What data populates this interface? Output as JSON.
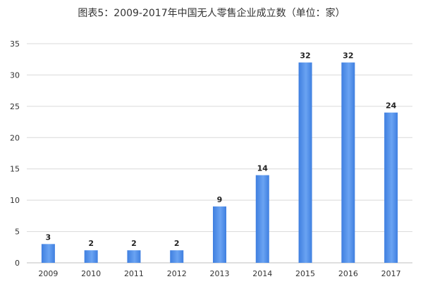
{
  "chart_data": {
    "type": "bar",
    "title": "图表5：2009-2017年中国无人零售企业成立数（单位：家）",
    "categories": [
      "2009",
      "2010",
      "2011",
      "2012",
      "2013",
      "2014",
      "2015",
      "2016",
      "2017"
    ],
    "values": [
      3,
      2,
      2,
      2,
      9,
      14,
      32,
      32,
      24
    ],
    "ylim": [
      0,
      35
    ],
    "yticks": [
      0,
      5,
      10,
      15,
      20,
      25,
      30,
      35
    ],
    "grid": true,
    "legend": "none",
    "bar_color": "#3f7fe0",
    "bar_color_light": "#6aa3f2",
    "grid_color": "#d9d9d9"
  }
}
